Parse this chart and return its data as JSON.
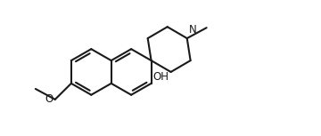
{
  "background_color": "#ffffff",
  "line_color": "#1a1a1a",
  "line_width": 1.5,
  "text_color": "#1a1a1a",
  "font_size": 8.5,
  "figsize": [
    3.6,
    1.53
  ],
  "dpi": 100,
  "xlim": [
    0,
    360
  ],
  "ylim": [
    0,
    153
  ]
}
